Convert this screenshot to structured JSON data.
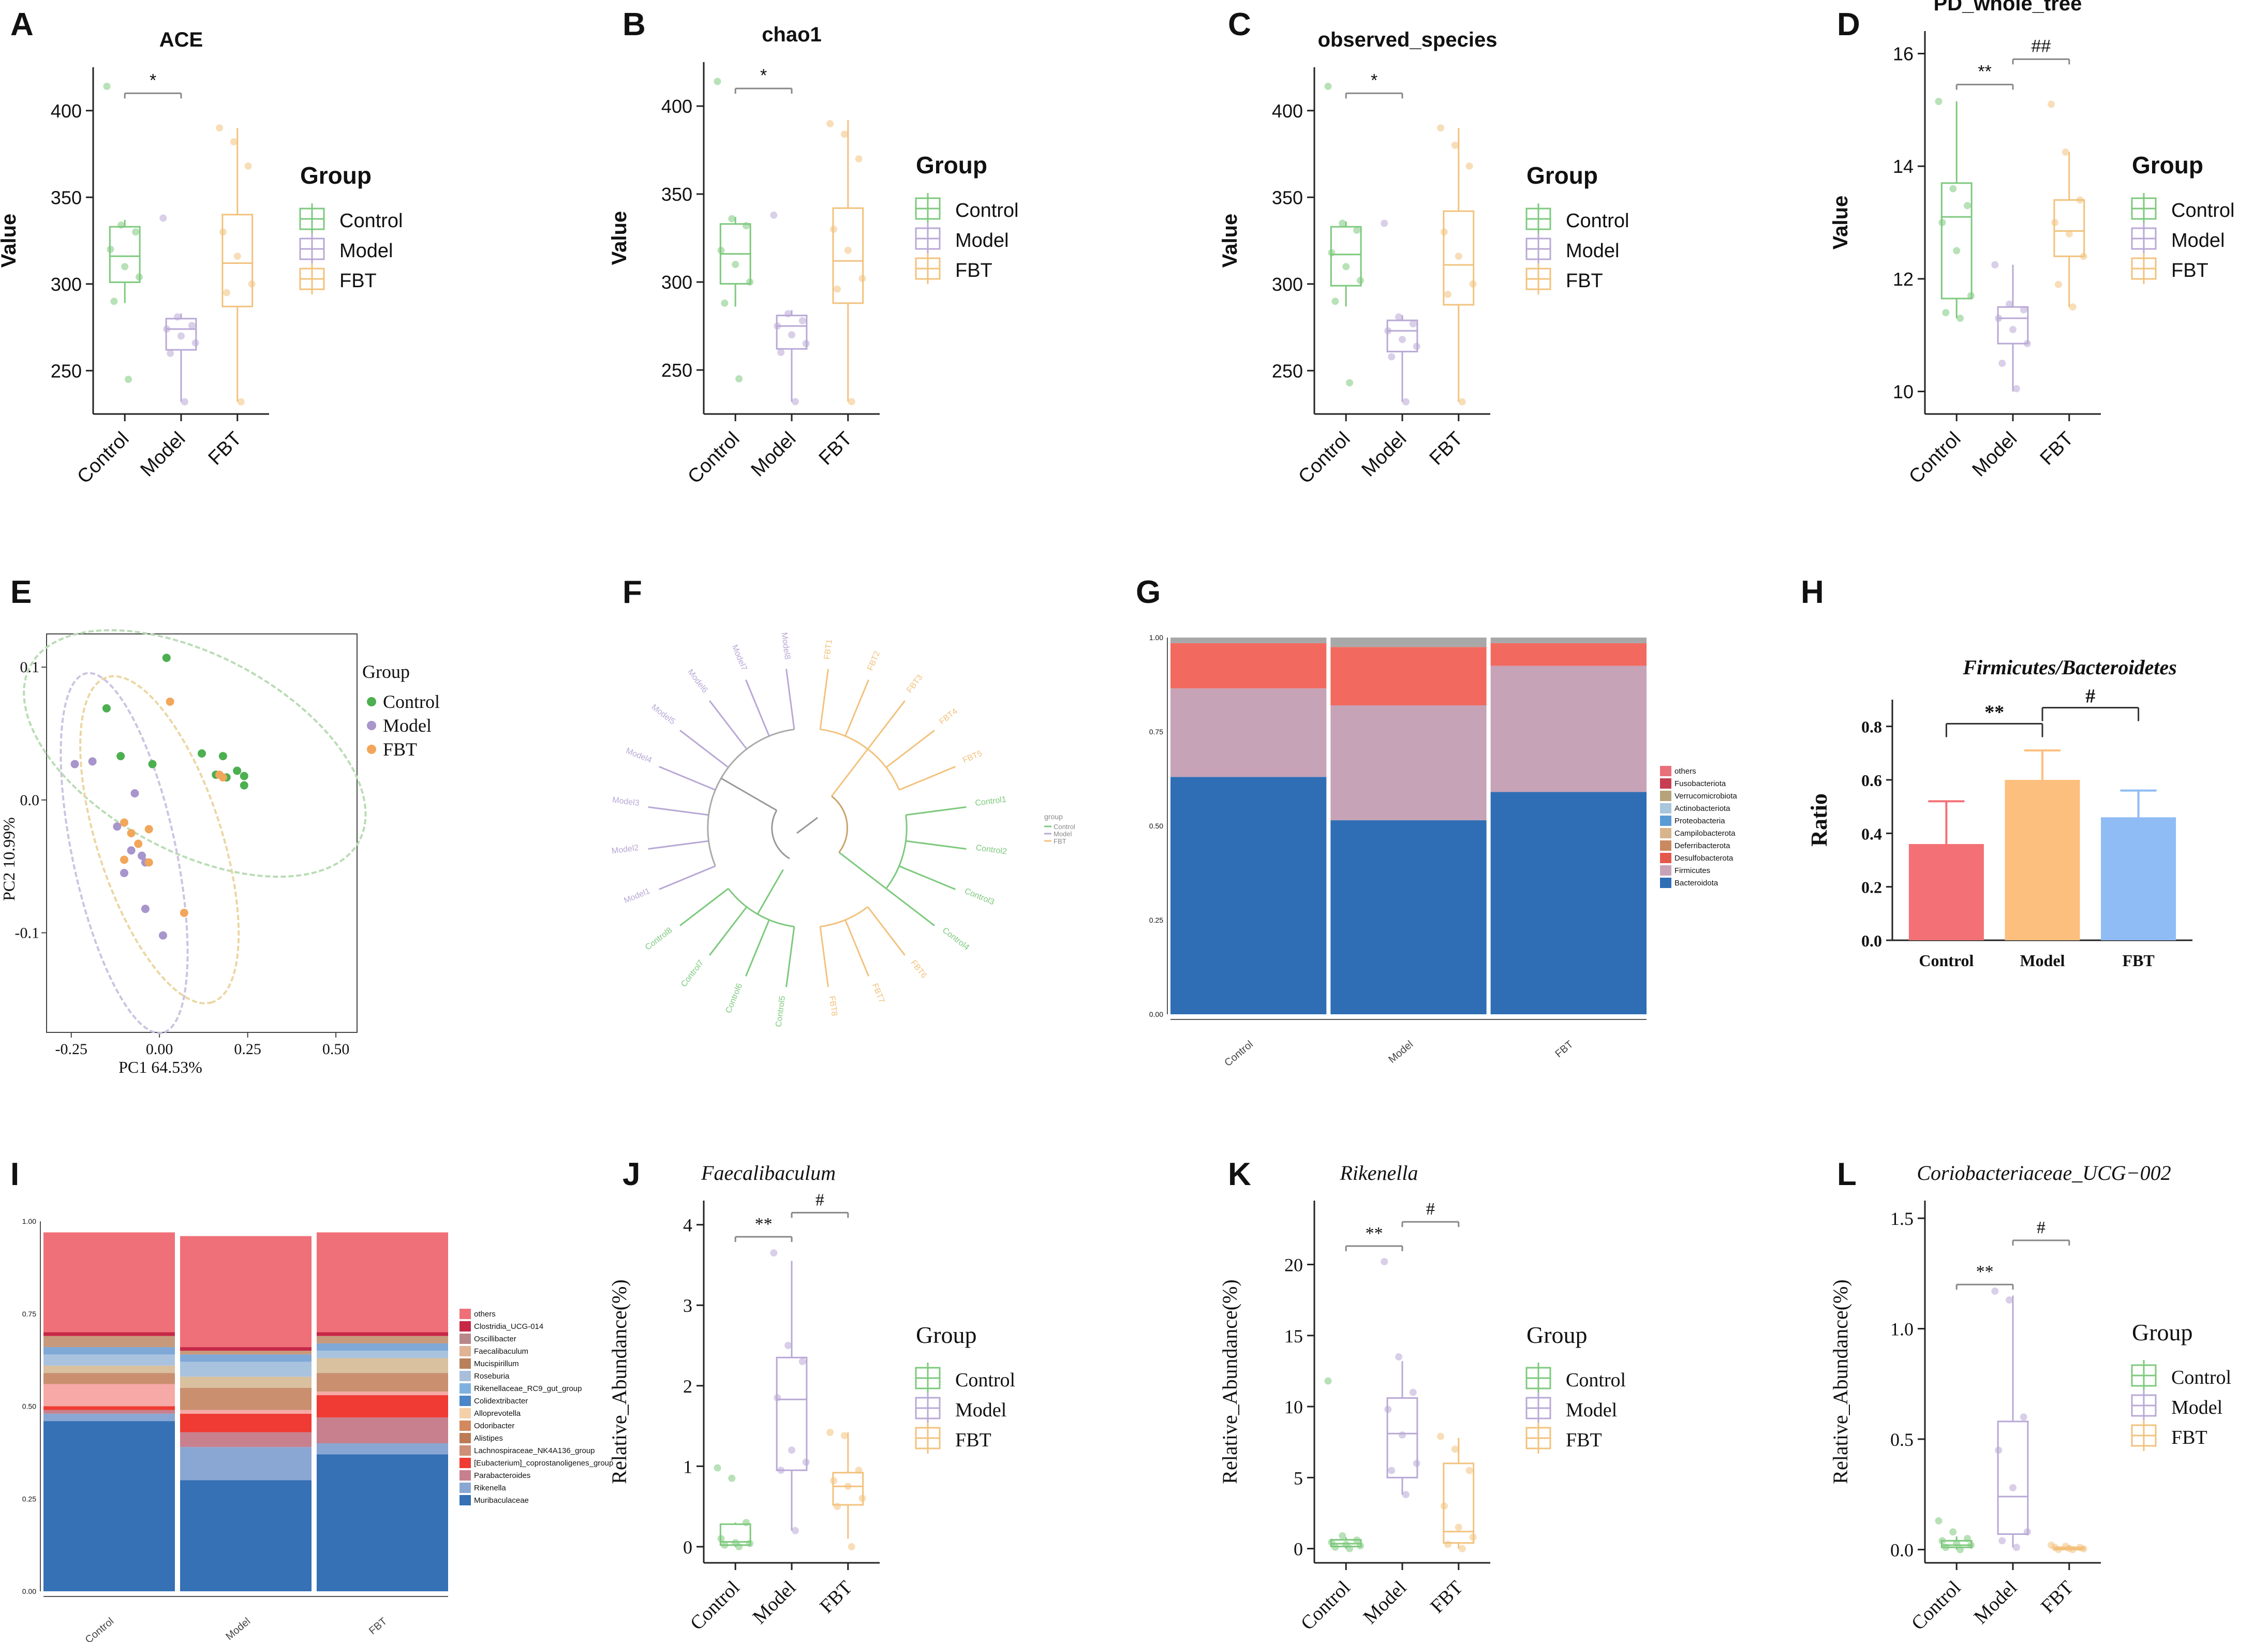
{
  "colors": {
    "control": "#7dc97d",
    "model": "#b9a8d6",
    "fbt": "#f2c27d",
    "axis": "#222222"
  },
  "legend_title": "Group",
  "groups": [
    "Control",
    "Model",
    "FBT"
  ],
  "chart_data": [
    {
      "panel": "A",
      "type": "box",
      "title": "ACE",
      "ylabel": "Value",
      "categories": [
        "Control",
        "Model",
        "FBT"
      ],
      "ylim": [
        225,
        425
      ],
      "yticks": [
        250,
        300,
        350,
        400
      ],
      "boxes": [
        {
          "q1": 301,
          "median": 316,
          "q3": 333,
          "low": 289,
          "high": 337
        },
        {
          "q1": 262,
          "median": 274,
          "q3": 280,
          "low": 232,
          "high": 283
        },
        {
          "q1": 287,
          "median": 312,
          "q3": 340,
          "low": 232,
          "high": 390
        }
      ],
      "points": [
        [
          414,
          334,
          330,
          320,
          310,
          304,
          290,
          245
        ],
        [
          338,
          281,
          276,
          274,
          270,
          266,
          260,
          232
        ],
        [
          390,
          382,
          368,
          330,
          316,
          300,
          295,
          232
        ]
      ],
      "sig": [
        {
          "from": 0,
          "to": 1,
          "label": "*",
          "y": 410
        }
      ]
    },
    {
      "panel": "B",
      "type": "box",
      "title": "chao1",
      "ylabel": "Value",
      "categories": [
        "Control",
        "Model",
        "FBT"
      ],
      "ylim": [
        225,
        425
      ],
      "yticks": [
        250,
        300,
        350,
        400
      ],
      "boxes": [
        {
          "q1": 299,
          "median": 316,
          "q3": 333,
          "low": 286,
          "high": 337
        },
        {
          "q1": 262,
          "median": 275,
          "q3": 281,
          "low": 232,
          "high": 284
        },
        {
          "q1": 288,
          "median": 312,
          "q3": 342,
          "low": 232,
          "high": 392
        }
      ],
      "points": [
        [
          414,
          336,
          332,
          318,
          310,
          300,
          288,
          245
        ],
        [
          338,
          282,
          278,
          275,
          270,
          265,
          260,
          232
        ],
        [
          390,
          384,
          370,
          330,
          318,
          302,
          296,
          232
        ]
      ],
      "sig": [
        {
          "from": 0,
          "to": 1,
          "label": "*",
          "y": 410
        }
      ]
    },
    {
      "panel": "C",
      "type": "box",
      "title": "observed_species",
      "ylabel": "Value",
      "categories": [
        "Control",
        "Model",
        "FBT"
      ],
      "ylim": [
        225,
        425
      ],
      "yticks": [
        250,
        300,
        350,
        400
      ],
      "boxes": [
        {
          "q1": 299,
          "median": 317,
          "q3": 333,
          "low": 287,
          "high": 336
        },
        {
          "q1": 261,
          "median": 273,
          "q3": 279,
          "low": 232,
          "high": 282
        },
        {
          "q1": 288,
          "median": 311,
          "q3": 342,
          "low": 232,
          "high": 390
        }
      ],
      "points": [
        [
          414,
          335,
          331,
          318,
          310,
          302,
          290,
          243
        ],
        [
          335,
          281,
          277,
          273,
          268,
          264,
          258,
          232
        ],
        [
          390,
          380,
          368,
          330,
          316,
          300,
          294,
          232
        ]
      ],
      "sig": [
        {
          "from": 0,
          "to": 1,
          "label": "*",
          "y": 410
        }
      ]
    },
    {
      "panel": "D",
      "type": "box",
      "title": "PD_whole_tree",
      "ylabel": "Value",
      "categories": [
        "Control",
        "Model",
        "FBT"
      ],
      "ylim": [
        9.6,
        16.4
      ],
      "yticks": [
        10,
        12,
        14,
        16
      ],
      "boxes": [
        {
          "q1": 11.65,
          "median": 13.1,
          "q3": 13.7,
          "low": 11.3,
          "high": 15.15
        },
        {
          "q1": 10.85,
          "median": 11.3,
          "q3": 11.5,
          "low": 10.0,
          "high": 12.25
        },
        {
          "q1": 12.4,
          "median": 12.85,
          "q3": 13.4,
          "low": 11.5,
          "high": 14.25
        }
      ],
      "points": [
        [
          15.15,
          13.6,
          13.3,
          13.0,
          12.5,
          11.7,
          11.4,
          11.3
        ],
        [
          12.25,
          11.55,
          11.45,
          11.3,
          11.1,
          10.85,
          10.5,
          10.05
        ],
        [
          15.1,
          14.25,
          13.4,
          13.0,
          12.8,
          12.4,
          11.9,
          11.5
        ]
      ],
      "sig": [
        {
          "from": 0,
          "to": 1,
          "label": "**",
          "y": 15.45
        },
        {
          "from": 1,
          "to": 2,
          "label": "##",
          "y": 15.9
        }
      ]
    },
    {
      "panel": "E",
      "type": "scatter",
      "xlabel": "PC1 64.53%",
      "ylabel": "PC2 10.99%",
      "xlim": [
        -0.32,
        0.56
      ],
      "ylim": [
        -0.175,
        0.125
      ],
      "xticks": [
        -0.25,
        0.0,
        0.25,
        0.5
      ],
      "xticklabels": [
        "-0.25",
        "0.00",
        "0.25",
        "0.50"
      ],
      "yticks": [
        -0.1,
        0.0,
        0.1
      ],
      "yticklabels": [
        "-0.1",
        "0.0",
        "0.1"
      ],
      "series": [
        {
          "name": "Control",
          "x": [
            0.02,
            -0.15,
            -0.11,
            -0.02,
            0.12,
            0.18,
            0.19,
            0.22,
            0.24,
            0.24,
            0.16
          ],
          "y": [
            0.107,
            0.069,
            0.033,
            0.027,
            0.035,
            0.033,
            0.017,
            0.022,
            0.018,
            0.011,
            0.019
          ]
        },
        {
          "name": "Model",
          "x": [
            -0.24,
            -0.19,
            -0.07,
            -0.12,
            -0.08,
            -0.05,
            -0.04,
            -0.1,
            -0.04,
            0.01
          ],
          "y": [
            0.027,
            0.029,
            0.005,
            -0.02,
            -0.038,
            -0.042,
            -0.047,
            -0.055,
            -0.082,
            -0.102
          ]
        },
        {
          "name": "FBT",
          "x": [
            0.03,
            0.17,
            0.18,
            -0.03,
            -0.1,
            -0.08,
            -0.06,
            -0.1,
            -0.03,
            0.07
          ],
          "y": [
            0.074,
            0.019,
            0.017,
            -0.022,
            -0.017,
            -0.025,
            -0.033,
            -0.045,
            -0.047,
            -0.085
          ]
        }
      ]
    },
    {
      "panel": "F",
      "type": "dendrogram",
      "legend": {
        "title": "group",
        "items": [
          "Control",
          "Model",
          "FBT"
        ]
      },
      "leaves": [
        "Control1",
        "Control2",
        "Control3",
        "Control4",
        "Control5",
        "Control6",
        "Control7",
        "Control8",
        "Model1",
        "Model2",
        "Model3",
        "Model4",
        "Model5",
        "Model6",
        "Model7",
        "Model8",
        "FBT1",
        "FBT2",
        "FBT3",
        "FBT4",
        "FBT5",
        "FBT6",
        "FBT7",
        "FBT8"
      ]
    },
    {
      "panel": "G",
      "type": "stacked_bar",
      "categories": [
        "Control",
        "Model",
        "FBT"
      ],
      "yticks": [
        0.0,
        0.25,
        0.5,
        0.75,
        1.0
      ],
      "yticklabels": [
        "0.00",
        "0.25",
        "0.50",
        "0.75",
        "1.00"
      ],
      "legend": [
        "others",
        "Fusobacteriota",
        "Verrucomicrobiota",
        "Actinobacteriota",
        "Proteobacteria",
        "Campilobacterota",
        "Deferribacterota",
        "Desulfobacterota",
        "Firmicutes",
        "Bacteroidota"
      ],
      "legend_colors": [
        "#e8707b",
        "#c73d52",
        "#b6a37b",
        "#a8c6dc",
        "#5b9bd5",
        "#d8b48c",
        "#c98a5f",
        "#e4594c",
        "#c7a3b8",
        "#2f6eb5"
      ],
      "series": [
        {
          "name": "Bacteroidota",
          "color": "#2f6eb5",
          "values": [
            0.63,
            0.515,
            0.59
          ]
        },
        {
          "name": "Firmicutes",
          "color": "#c7a3b8",
          "values": [
            0.235,
            0.305,
            0.335
          ]
        },
        {
          "name": "Desulfobacterota",
          "color": "#f26a5f",
          "values": [
            0.12,
            0.155,
            0.06
          ]
        },
        {
          "name": "others",
          "color": "#a8a8a8",
          "values": [
            0.015,
            0.025,
            0.015
          ]
        }
      ]
    },
    {
      "panel": "H",
      "type": "bar",
      "title": "Firmicutes/Bacteroidetes",
      "ylabel": "Ratio",
      "categories": [
        "Control",
        "Model",
        "FBT"
      ],
      "values": [
        0.36,
        0.6,
        0.46
      ],
      "errors": [
        0.16,
        0.11,
        0.1
      ],
      "colors": [
        "#f37176",
        "#fdbf7e",
        "#8fbcf5"
      ],
      "ylim": [
        0,
        0.9
      ],
      "yticks": [
        0.0,
        0.2,
        0.4,
        0.6,
        0.8
      ],
      "yticklabels": [
        "0.0",
        "0.2",
        "0.4",
        "0.6",
        "0.8"
      ],
      "sig": [
        {
          "from": 0,
          "to": 1,
          "label": "**",
          "y": 0.81
        },
        {
          "from": 1,
          "to": 2,
          "label": "#",
          "y": 0.87
        }
      ]
    },
    {
      "panel": "I",
      "type": "stacked_bar",
      "categories": [
        "Control",
        "Model",
        "FBT"
      ],
      "yticks": [
        0.0,
        0.25,
        0.5,
        0.75,
        1.0
      ],
      "yticklabels": [
        "0.00",
        "0.25",
        "0.50",
        "0.75",
        "1.00"
      ],
      "legend": [
        "others",
        "Clostridia_UCG-014",
        "Oscillibacter",
        "Faecalibaculum",
        "Mucispirillum",
        "Roseburia",
        "Rikenellaceae_RC9_gut_group",
        "Colidextribacter",
        "Alloprevotella",
        "Odoribacter",
        "Alistipes",
        "Lachnospiraceae_NK4A136_group",
        "[Eubacterium]_coprostanoligenes_group",
        "Parabacteroides",
        "Rikenella",
        "Muribaculaceae"
      ],
      "legend_colors": [
        "#f07079",
        "#c62846",
        "#b7878a",
        "#dfb394",
        "#b9805b",
        "#a9bedb",
        "#7fb1e0",
        "#4a86c8",
        "#f4cfa8",
        "#d2895e",
        "#bc7b56",
        "#cf8f76",
        "#ef3b33",
        "#c8808e",
        "#8aa7d3",
        "#3670b5"
      ],
      "series": [
        {
          "name": "Muribaculaceae",
          "color": "#3670b5",
          "values": [
            0.46,
            0.3,
            0.37
          ]
        },
        {
          "name": "Rikenella",
          "color": "#8aa7d3",
          "values": [
            0.02,
            0.09,
            0.03
          ]
        },
        {
          "name": "Parabacteroides",
          "color": "#c8808e",
          "values": [
            0.01,
            0.04,
            0.07
          ]
        },
        {
          "name": "[Eubacterium]_coprostanoligenes_group",
          "color": "#ef3b33",
          "values": [
            0.01,
            0.05,
            0.06
          ]
        },
        {
          "name": "Lachnospiraceae_NK4A136_group",
          "color": "#f6a9a6",
          "values": [
            0.06,
            0.01,
            0.01
          ]
        },
        {
          "name": "Alistipes",
          "color": "#c98f6e",
          "values": [
            0.03,
            0.06,
            0.05
          ]
        },
        {
          "name": "Odoribacter",
          "color": "#d9c09f",
          "values": [
            0.02,
            0.03,
            0.04
          ]
        },
        {
          "name": "Colidextribacter",
          "color": "#a9c3df",
          "values": [
            0.03,
            0.04,
            0.02
          ]
        },
        {
          "name": "Oscillibacter",
          "color": "#7fa8d6",
          "values": [
            0.02,
            0.02,
            0.02
          ]
        },
        {
          "name": "Faecalibaculum",
          "color": "#c79a7c",
          "values": [
            0.03,
            0.01,
            0.02
          ]
        },
        {
          "name": "Clostridia_UCG-014",
          "color": "#c62846",
          "values": [
            0.01,
            0.01,
            0.01
          ]
        },
        {
          "name": "others",
          "color": "#f07079",
          "values": [
            0.27,
            0.3,
            0.27
          ]
        }
      ]
    },
    {
      "panel": "J",
      "type": "box",
      "title": "Faecalibaculum",
      "ylabel": "Relative_Abundance(%)",
      "categories": [
        "Control",
        "Model",
        "FBT"
      ],
      "ylim": [
        -0.2,
        4.3
      ],
      "yticks": [
        0,
        1,
        2,
        3,
        4
      ],
      "boxes": [
        {
          "q1": 0.02,
          "median": 0.06,
          "q3": 0.28,
          "low": 0.0,
          "high": 0.3
        },
        {
          "q1": 0.95,
          "median": 1.83,
          "q3": 2.35,
          "low": 0.2,
          "high": 3.55
        },
        {
          "q1": 0.52,
          "median": 0.75,
          "q3": 0.92,
          "low": 0.1,
          "high": 1.42
        }
      ],
      "points": [
        [
          0.98,
          0.85,
          0.3,
          0.1,
          0.05,
          0.04,
          0.02,
          0.0
        ],
        [
          3.65,
          2.5,
          2.3,
          1.85,
          1.2,
          1.05,
          0.95,
          0.2
        ],
        [
          1.42,
          1.38,
          0.95,
          0.82,
          0.75,
          0.6,
          0.5,
          0.0
        ]
      ],
      "sig": [
        {
          "from": 0,
          "to": 1,
          "label": "**",
          "y": 3.85
        },
        {
          "from": 1,
          "to": 2,
          "label": "#",
          "y": 4.15
        }
      ]
    },
    {
      "panel": "K",
      "type": "box",
      "title": "Rikenella",
      "ylabel": "Relative_Abundance(%)",
      "categories": [
        "Control",
        "Model",
        "FBT"
      ],
      "ylim": [
        -1,
        24.5
      ],
      "yticks": [
        0,
        5,
        10,
        15,
        20
      ],
      "boxes": [
        {
          "q1": 0.15,
          "median": 0.35,
          "q3": 0.62,
          "low": 0.0,
          "high": 0.8
        },
        {
          "q1": 5.0,
          "median": 8.1,
          "q3": 10.6,
          "low": 3.8,
          "high": 13.2
        },
        {
          "q1": 0.4,
          "median": 1.2,
          "q3": 6.0,
          "low": 0.0,
          "high": 7.8
        }
      ],
      "points": [
        [
          11.8,
          0.9,
          0.6,
          0.45,
          0.3,
          0.2,
          0.1,
          0.0
        ],
        [
          20.2,
          13.5,
          11.0,
          9.8,
          8.0,
          6.0,
          5.5,
          3.8
        ],
        [
          7.9,
          7.0,
          5.5,
          3.0,
          1.5,
          0.8,
          0.3,
          0.0
        ]
      ],
      "sig": [
        {
          "from": 0,
          "to": 1,
          "label": "**",
          "y": 21.3
        },
        {
          "from": 1,
          "to": 2,
          "label": "#",
          "y": 23.0
        }
      ]
    },
    {
      "panel": "L",
      "type": "box",
      "title": "Coriobacteriaceae_UCG−002",
      "ylabel": "Relative_Abundance(%)",
      "categories": [
        "Control",
        "Model",
        "FBT"
      ],
      "ylim": [
        -0.06,
        1.58
      ],
      "yticks": [
        0.0,
        0.5,
        1.0,
        1.5
      ],
      "yticklabels": [
        "0.0",
        "0.5",
        "1.0",
        "1.5"
      ],
      "boxes": [
        {
          "q1": 0.01,
          "median": 0.02,
          "q3": 0.04,
          "low": 0.0,
          "high": 0.06
        },
        {
          "q1": 0.07,
          "median": 0.24,
          "q3": 0.58,
          "low": 0.01,
          "high": 1.15
        },
        {
          "q1": 0.0,
          "median": 0.005,
          "q3": 0.01,
          "low": 0.0,
          "high": 0.02
        }
      ],
      "points": [
        [
          0.13,
          0.08,
          0.05,
          0.04,
          0.03,
          0.02,
          0.01,
          0.0
        ],
        [
          1.17,
          1.13,
          0.6,
          0.45,
          0.28,
          0.08,
          0.04,
          0.01
        ],
        [
          0.02,
          0.015,
          0.01,
          0.01,
          0.005,
          0.003,
          0.0,
          0.0
        ]
      ],
      "sig": [
        {
          "from": 0,
          "to": 1,
          "label": "**",
          "y": 1.2
        },
        {
          "from": 1,
          "to": 2,
          "label": "#",
          "y": 1.4
        }
      ]
    }
  ]
}
